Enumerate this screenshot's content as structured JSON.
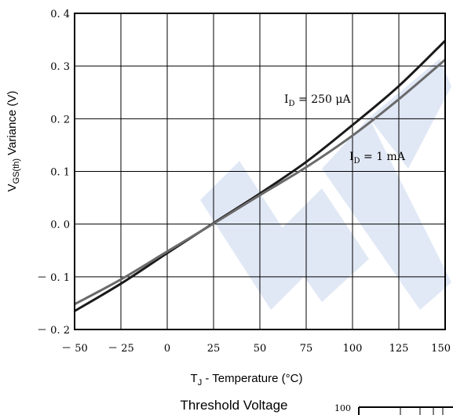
{
  "chart_data": {
    "type": "line",
    "xlabel": {
      "main": "T",
      "sub": "J",
      "rest": " - Temperature (°C)"
    },
    "ylabel": {
      "main": "V",
      "sub": "GS(th)",
      "rest": " Variance (V)"
    },
    "xlim": [
      -50,
      150
    ],
    "ylim": [
      -0.2,
      0.4
    ],
    "x_ticks": [
      -50,
      -25,
      0,
      25,
      50,
      75,
      100,
      125,
      150
    ],
    "x_tick_labels": [
      "－ 50",
      "－ 25",
      "0",
      "25",
      "50",
      "75",
      "100",
      "125",
      "150"
    ],
    "y_ticks": [
      0.4,
      0.3,
      0.2,
      0.1,
      0.0,
      -0.1,
      -0.2
    ],
    "y_tick_labels": [
      "0. 4",
      "0. 3",
      "0. 2",
      "0. 1",
      "0. 0",
      "－ 0. 1",
      "－ 0. 2"
    ],
    "grid": true,
    "series": [
      {
        "name": "ID = 250 μA",
        "color": "#1a1a1a",
        "x": [
          -50,
          -25,
          0,
          25,
          50,
          75,
          100,
          125,
          150
        ],
        "y": [
          -0.165,
          -0.113,
          -0.055,
          0.002,
          0.058,
          0.118,
          0.188,
          0.262,
          0.348
        ]
      },
      {
        "name": "ID = 1 mA",
        "color": "#6a6a6a",
        "x": [
          -50,
          -25,
          0,
          25,
          50,
          75,
          100,
          125,
          150
        ],
        "y": [
          -0.152,
          -0.105,
          -0.052,
          0.001,
          0.055,
          0.108,
          0.168,
          0.237,
          0.312
        ]
      }
    ],
    "annotations": [
      {
        "main": "I",
        "sub": "D",
        "rest": " = 250  μA",
        "series": 0
      },
      {
        "main": "I",
        "sub": "D",
        "rest": " = 1 mA",
        "series": 1
      }
    ]
  },
  "caption": "Threshold Voltage",
  "next_chart_fragment": {
    "tick_label": "100"
  },
  "watermark_color": "#c9d6ee"
}
